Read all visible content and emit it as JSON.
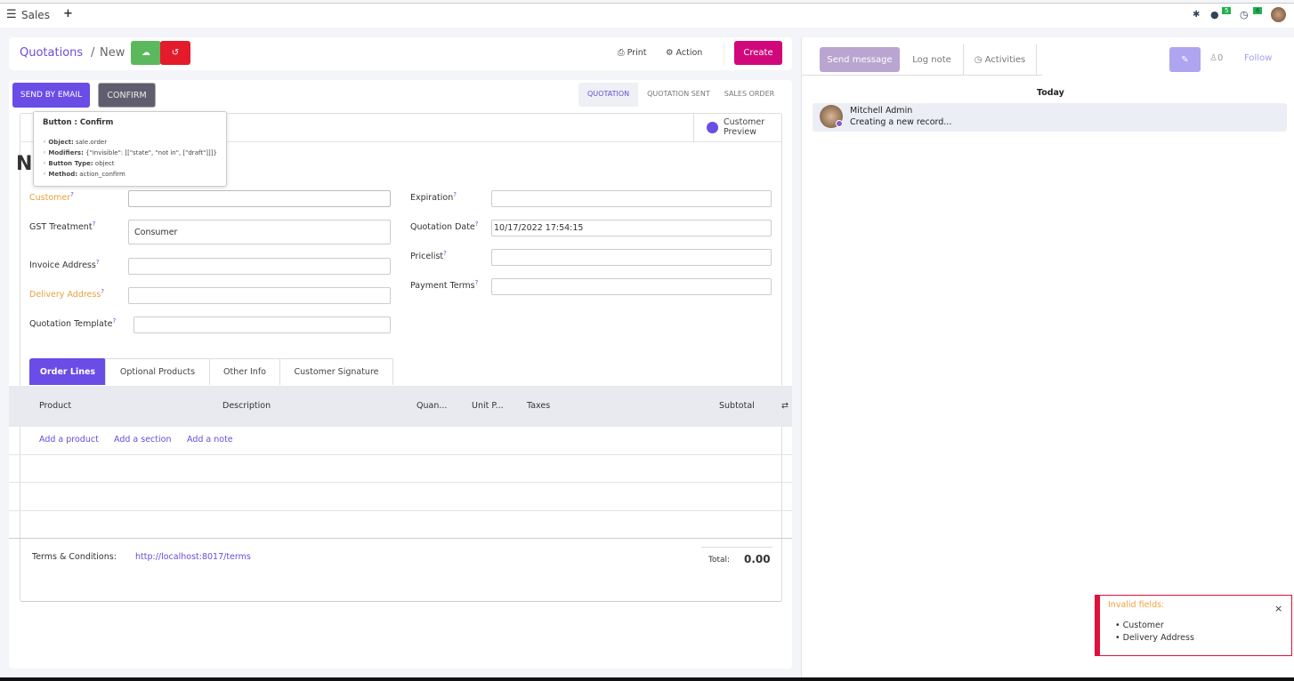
{
  "topbar": {
    "app": "Sales",
    "messages_count": "5",
    "activities_count": "6"
  },
  "breadcrumb": {
    "parent": "Quotations",
    "current": "New"
  },
  "toolbar": {
    "print": "Print",
    "action": "Action",
    "create": "Create"
  },
  "header_buttons": {
    "send_by_email": "SEND BY EMAIL",
    "confirm": "CONFIRM"
  },
  "statusbar": [
    "QUOTATION",
    "QUOTATION SENT",
    "SALES ORDER"
  ],
  "customer_preview": "Customer Preview",
  "tooltip": {
    "title": "Button : Confirm",
    "items": [
      {
        "label": "Object:",
        "value": "sale.order"
      },
      {
        "label": "Modifiers:",
        "value": "{\"invisible\": [[\"state\", \"not in\", [\"draft\"]]]}"
      },
      {
        "label": "Button Type:",
        "value": "object"
      },
      {
        "label": "Method:",
        "value": "action_confirm"
      }
    ]
  },
  "form": {
    "customer": {
      "label": "Customer",
      "value": ""
    },
    "gst_treatment": {
      "label": "GST Treatment",
      "value": "Consumer"
    },
    "invoice_address": {
      "label": "Invoice Address",
      "value": ""
    },
    "delivery_address": {
      "label": "Delivery Address",
      "value": ""
    },
    "quotation_template": {
      "label": "Quotation Template",
      "value": ""
    },
    "expiration": {
      "label": "Expiration",
      "value": ""
    },
    "quotation_date": {
      "label": "Quotation Date",
      "value": "10/17/2022 17:54:15"
    },
    "pricelist": {
      "label": "Pricelist",
      "value": ""
    },
    "payment_terms": {
      "label": "Payment Terms",
      "value": ""
    },
    "help_mark": "?"
  },
  "tabs": [
    "Order Lines",
    "Optional Products",
    "Other Info",
    "Customer Signature"
  ],
  "table": {
    "columns": [
      "Product",
      "Description",
      "Quan...",
      "Unit P...",
      "Taxes",
      "Subtotal"
    ],
    "add_product": "Add a product",
    "add_section": "Add a section",
    "add_note": "Add a note"
  },
  "footer": {
    "terms_label": "Terms & Conditions:",
    "terms_link": "http://localhost:8017/terms",
    "total_label": "Total:",
    "total_value": "0.00"
  },
  "chatter": {
    "send_message": "Send message",
    "log_note": "Log note",
    "activities": "Activities",
    "followers": "0",
    "follow": "Follow",
    "today": "Today",
    "author": "Mitchell Admin",
    "message": "Creating a new record..."
  },
  "toast": {
    "title": "Invalid fields:",
    "items": [
      "Customer",
      "Delivery Address"
    ],
    "close": "×"
  }
}
